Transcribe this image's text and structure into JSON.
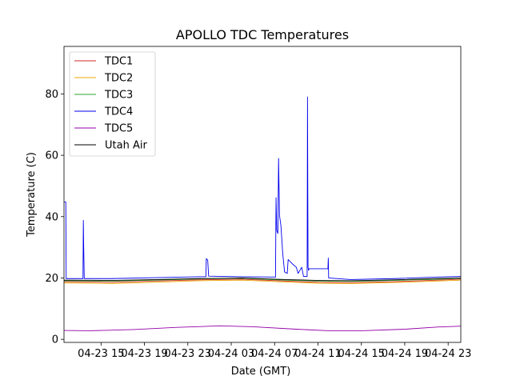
{
  "chart_data": {
    "type": "line",
    "title": "APOLLO TDC Temperatures",
    "xlabel": "Date (GMT)",
    "ylabel": "Temperature (C)",
    "xlim": [
      "04-23 11:35",
      "04-25 00:10"
    ],
    "ylim": [
      -1,
      95.5
    ],
    "x_ticks": [
      {
        "t": "04-23 15:00",
        "label": "04-23 15"
      },
      {
        "t": "04-23 19:00",
        "label": "04-23 19"
      },
      {
        "t": "04-23 23:00",
        "label": "04-23 23"
      },
      {
        "t": "04-24 03:00",
        "label": "04-24 03"
      },
      {
        "t": "04-24 07:00",
        "label": "04-24 07"
      },
      {
        "t": "04-24 11:00",
        "label": "04-24 11"
      },
      {
        "t": "04-24 15:00",
        "label": "04-24 15"
      },
      {
        "t": "04-24 19:00",
        "label": "04-24 19"
      },
      {
        "t": "04-24 23:00",
        "label": "04-24 23"
      }
    ],
    "y_ticks": [
      0,
      20,
      40,
      60,
      80
    ],
    "grid": false,
    "legend_position": "top-left",
    "series": [
      {
        "name": "TDC1",
        "color": "#d62728",
        "points": [
          [
            "04-23 11:35",
            18.8
          ],
          [
            "04-23 16:00",
            18.6
          ],
          [
            "04-23 20:00",
            19.0
          ],
          [
            "04-24 00:00",
            19.4
          ],
          [
            "04-24 04:00",
            19.6
          ],
          [
            "04-24 08:00",
            19.0
          ],
          [
            "04-24 11:00",
            18.6
          ],
          [
            "04-24 14:00",
            18.5
          ],
          [
            "04-24 18:00",
            18.8
          ],
          [
            "04-24 22:00",
            19.3
          ],
          [
            "04-25 00:10",
            19.6
          ]
        ]
      },
      {
        "name": "TDC2",
        "color": "#e8a800",
        "points": [
          [
            "04-23 11:35",
            18.4
          ],
          [
            "04-23 16:00",
            18.2
          ],
          [
            "04-23 20:00",
            18.6
          ],
          [
            "04-24 00:00",
            19.1
          ],
          [
            "04-24 04:00",
            19.3
          ],
          [
            "04-24 08:00",
            18.7
          ],
          [
            "04-24 11:00",
            18.3
          ],
          [
            "04-24 14:00",
            18.2
          ],
          [
            "04-24 18:00",
            18.5
          ],
          [
            "04-24 22:00",
            19.0
          ],
          [
            "04-25 00:10",
            19.3
          ]
        ]
      },
      {
        "name": "TDC3",
        "color": "#2ca02c",
        "points": [
          [
            "04-23 11:35",
            19.1
          ],
          [
            "04-23 16:00",
            19.0
          ],
          [
            "04-23 20:00",
            19.3
          ],
          [
            "04-24 00:00",
            19.7
          ],
          [
            "04-24 04:00",
            19.9
          ],
          [
            "04-24 08:00",
            19.3
          ],
          [
            "04-24 11:00",
            19.0
          ],
          [
            "04-24 14:00",
            18.9
          ],
          [
            "04-24 18:00",
            19.2
          ],
          [
            "04-24 22:00",
            19.6
          ],
          [
            "04-25 00:10",
            19.9
          ]
        ]
      },
      {
        "name": "TDC4",
        "color": "#0000ee",
        "points": [
          [
            "04-23 11:35",
            44.8
          ],
          [
            "04-23 11:45",
            44.8
          ],
          [
            "04-23 11:47",
            19.8
          ],
          [
            "04-23 13:20",
            19.8
          ],
          [
            "04-23 13:22",
            38.8
          ],
          [
            "04-23 13:24",
            30.0
          ],
          [
            "04-23 13:27",
            19.8
          ],
          [
            "04-23 16:00",
            19.8
          ],
          [
            "04-23 20:00",
            20.1
          ],
          [
            "04-24 00:00",
            20.4
          ],
          [
            "04-24 00:40",
            20.4
          ],
          [
            "04-24 00:42",
            26.3
          ],
          [
            "04-24 00:50",
            25.8
          ],
          [
            "04-24 00:55",
            20.6
          ],
          [
            "04-24 04:00",
            20.4
          ],
          [
            "04-24 07:05",
            20.3
          ],
          [
            "04-24 07:08",
            46.2
          ],
          [
            "04-24 07:12",
            35.5
          ],
          [
            "04-24 07:18",
            34.5
          ],
          [
            "04-24 07:22",
            59.0
          ],
          [
            "04-24 07:27",
            40.5
          ],
          [
            "04-24 07:35",
            37.0
          ],
          [
            "04-24 07:45",
            28.0
          ],
          [
            "04-24 07:55",
            22.0
          ],
          [
            "04-24 08:10",
            21.5
          ],
          [
            "04-24 08:15",
            26.0
          ],
          [
            "04-24 08:40",
            24.5
          ],
          [
            "04-24 09:00",
            23.5
          ],
          [
            "04-24 09:10",
            21.5
          ],
          [
            "04-24 09:30",
            23.5
          ],
          [
            "04-24 09:40",
            20.5
          ],
          [
            "04-24 10:00",
            20.5
          ],
          [
            "04-24 10:02",
            79.0
          ],
          [
            "04-24 10:05",
            23.5
          ],
          [
            "04-24 10:08",
            22.5
          ],
          [
            "04-24 10:10",
            23.0
          ],
          [
            "04-24 11:55",
            23.0
          ],
          [
            "04-24 11:57",
            26.5
          ],
          [
            "04-24 11:59",
            20.0
          ],
          [
            "04-24 14:00",
            19.5
          ],
          [
            "04-24 18:00",
            19.8
          ],
          [
            "04-24 22:00",
            20.3
          ],
          [
            "04-25 00:10",
            20.5
          ]
        ]
      },
      {
        "name": "TDC5",
        "color": "#9400a8",
        "points": [
          [
            "04-23 11:35",
            2.9
          ],
          [
            "04-23 14:00",
            2.8
          ],
          [
            "04-23 18:00",
            3.2
          ],
          [
            "04-23 22:00",
            3.9
          ],
          [
            "04-24 02:00",
            4.4
          ],
          [
            "04-24 05:00",
            4.1
          ],
          [
            "04-24 09:00",
            3.3
          ],
          [
            "04-24 12:00",
            2.8
          ],
          [
            "04-24 15:00",
            2.8
          ],
          [
            "04-24 19:00",
            3.3
          ],
          [
            "04-24 22:00",
            4.0
          ],
          [
            "04-25 00:10",
            4.3
          ]
        ]
      },
      {
        "name": "Utah Air",
        "color": "#000000",
        "points": [
          [
            "04-23 11:35",
            19.3
          ],
          [
            "04-23 16:00",
            19.2
          ],
          [
            "04-23 20:00",
            19.5
          ],
          [
            "04-24 00:00",
            19.8
          ],
          [
            "04-24 04:00",
            20.0
          ],
          [
            "04-24 08:00",
            19.5
          ],
          [
            "04-24 11:00",
            19.2
          ],
          [
            "04-24 14:00",
            19.1
          ],
          [
            "04-24 18:00",
            19.4
          ],
          [
            "04-24 22:00",
            19.8
          ],
          [
            "04-25 00:10",
            20.0
          ]
        ]
      }
    ]
  }
}
